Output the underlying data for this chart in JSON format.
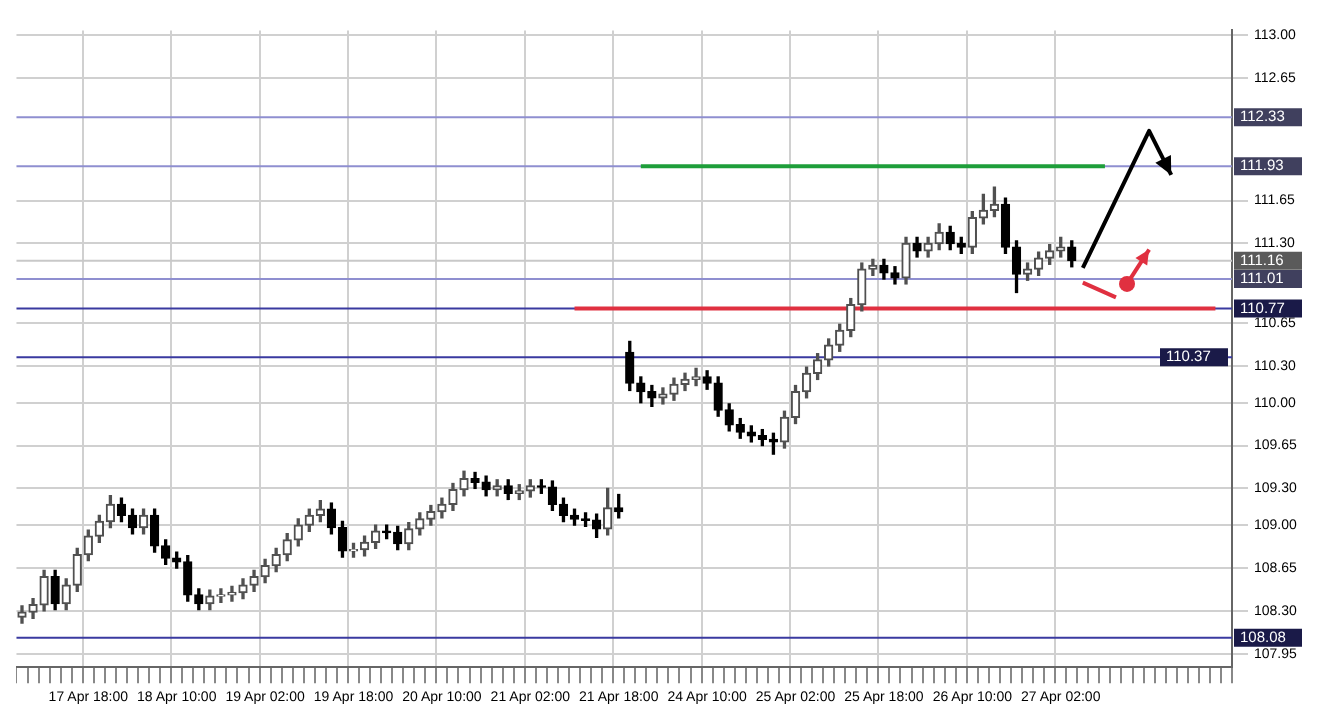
{
  "chart_data": {
    "type": "candlestick",
    "categories": [
      null,
      null,
      null,
      null,
      null,
      null,
      "17 Apr 18:00",
      null,
      null,
      null,
      null,
      null,
      null,
      null,
      "18 Apr 10:00",
      null,
      null,
      null,
      null,
      null,
      null,
      null,
      "19 Apr 02:00",
      null,
      null,
      null,
      null,
      null,
      null,
      null,
      "19 Apr 18:00",
      null,
      null,
      null,
      null,
      null,
      null,
      null,
      "20 Apr 10:00",
      null,
      null,
      null,
      null,
      null,
      null,
      null,
      "21 Apr 02:00",
      null,
      null,
      null,
      null,
      null,
      null,
      null,
      "21 Apr 18:00",
      null,
      null,
      null,
      null,
      null,
      null,
      null,
      "24 Apr 10:00",
      null,
      null,
      null,
      null,
      null,
      null,
      null,
      "25 Apr 02:00",
      null,
      null,
      null,
      null,
      null,
      null,
      null,
      "25 Apr 18:00",
      null,
      null,
      null,
      null,
      null,
      null,
      null,
      "26 Apr 10:00",
      null,
      null,
      null,
      null,
      null,
      null,
      null,
      "27 Apr 02:00",
      null,
      null,
      null,
      null,
      null,
      null,
      null,
      null,
      null,
      null,
      null,
      null,
      null,
      null,
      null
    ],
    "ohlc": [
      [
        108.25,
        108.34,
        108.2,
        108.29
      ],
      [
        108.29,
        108.4,
        108.24,
        108.35
      ],
      [
        108.35,
        108.63,
        108.3,
        108.58
      ],
      [
        108.58,
        108.63,
        108.31,
        108.36
      ],
      [
        108.36,
        108.56,
        108.31,
        108.51
      ],
      [
        108.51,
        108.81,
        108.46,
        108.76
      ],
      [
        108.76,
        108.96,
        108.71,
        108.91
      ],
      [
        108.91,
        109.08,
        108.86,
        109.03
      ],
      [
        109.03,
        109.24,
        108.98,
        109.17
      ],
      [
        109.17,
        109.22,
        109.03,
        109.08
      ],
      [
        109.08,
        109.13,
        108.93,
        108.98
      ],
      [
        108.98,
        109.13,
        108.93,
        109.08
      ],
      [
        109.08,
        109.13,
        108.78,
        108.83
      ],
      [
        108.83,
        108.88,
        108.68,
        108.73
      ],
      [
        108.73,
        108.78,
        108.65,
        108.7
      ],
      [
        108.7,
        108.75,
        108.38,
        108.43
      ],
      [
        108.43,
        108.48,
        108.31,
        108.36
      ],
      [
        108.36,
        108.47,
        108.31,
        108.42
      ],
      [
        108.42,
        108.48,
        108.37,
        108.43
      ],
      [
        108.43,
        108.5,
        108.38,
        108.45
      ],
      [
        108.45,
        108.56,
        108.4,
        108.51
      ],
      [
        108.51,
        108.63,
        108.46,
        108.58
      ],
      [
        108.58,
        108.72,
        108.53,
        108.67
      ],
      [
        108.67,
        108.81,
        108.62,
        108.76
      ],
      [
        108.76,
        108.93,
        108.71,
        108.88
      ],
      [
        108.88,
        109.05,
        108.83,
        109.0
      ],
      [
        109.0,
        109.13,
        108.95,
        109.08
      ],
      [
        109.08,
        109.2,
        109.03,
        109.13
      ],
      [
        109.13,
        109.18,
        108.93,
        108.98
      ],
      [
        108.98,
        109.03,
        108.74,
        108.79
      ],
      [
        108.79,
        108.85,
        108.74,
        108.8
      ],
      [
        108.8,
        108.91,
        108.75,
        108.86
      ],
      [
        108.86,
        109.0,
        108.81,
        108.95
      ],
      [
        108.95,
        109.0,
        108.89,
        108.94
      ],
      [
        108.94,
        108.99,
        108.8,
        108.85
      ],
      [
        108.85,
        109.02,
        108.8,
        108.97
      ],
      [
        108.97,
        109.1,
        108.92,
        109.05
      ],
      [
        109.05,
        109.16,
        109.0,
        109.11
      ],
      [
        109.11,
        109.22,
        109.06,
        109.17
      ],
      [
        109.17,
        109.34,
        109.12,
        109.29
      ],
      [
        109.29,
        109.44,
        109.24,
        109.38
      ],
      [
        109.38,
        109.43,
        109.3,
        109.35
      ],
      [
        109.35,
        109.4,
        109.24,
        109.29
      ],
      [
        109.29,
        109.37,
        109.24,
        109.32
      ],
      [
        109.32,
        109.37,
        109.21,
        109.26
      ],
      [
        109.26,
        109.33,
        109.21,
        109.28
      ],
      [
        109.28,
        109.37,
        109.23,
        109.32
      ],
      [
        109.32,
        109.37,
        109.26,
        109.31
      ],
      [
        109.31,
        109.36,
        109.12,
        109.17
      ],
      [
        109.17,
        109.22,
        109.03,
        109.08
      ],
      [
        109.08,
        109.13,
        109.0,
        109.05
      ],
      [
        109.05,
        109.1,
        108.99,
        109.04
      ],
      [
        109.04,
        109.09,
        108.9,
        108.97
      ],
      [
        108.97,
        109.3,
        108.92,
        109.14
      ],
      [
        109.14,
        109.25,
        109.06,
        109.11
      ],
      [
        110.41,
        110.5,
        110.1,
        110.16
      ],
      [
        110.16,
        110.21,
        110.0,
        110.09
      ],
      [
        110.09,
        110.14,
        109.97,
        110.04
      ],
      [
        110.04,
        110.12,
        109.99,
        110.07
      ],
      [
        110.07,
        110.2,
        110.02,
        110.15
      ],
      [
        110.15,
        110.24,
        110.1,
        110.19
      ],
      [
        110.19,
        110.28,
        110.14,
        110.21
      ],
      [
        110.21,
        110.26,
        110.11,
        110.16
      ],
      [
        110.16,
        110.21,
        109.89,
        109.94
      ],
      [
        109.94,
        109.99,
        109.77,
        109.82
      ],
      [
        109.82,
        109.87,
        109.71,
        109.76
      ],
      [
        109.76,
        109.81,
        109.68,
        109.73
      ],
      [
        109.73,
        109.78,
        109.65,
        109.7
      ],
      [
        109.7,
        109.75,
        109.58,
        109.68
      ],
      [
        109.68,
        109.93,
        109.63,
        109.88
      ],
      [
        109.88,
        110.14,
        109.83,
        110.09
      ],
      [
        110.09,
        110.29,
        110.04,
        110.24
      ],
      [
        110.24,
        110.4,
        110.19,
        110.35
      ],
      [
        110.35,
        110.52,
        110.3,
        110.47
      ],
      [
        110.47,
        110.64,
        110.42,
        110.59
      ],
      [
        110.59,
        110.85,
        110.54,
        110.8
      ],
      [
        110.8,
        111.14,
        110.75,
        111.09
      ],
      [
        111.09,
        111.17,
        111.04,
        111.12
      ],
      [
        111.12,
        111.17,
        111.01,
        111.06
      ],
      [
        111.06,
        111.11,
        110.97,
        111.02
      ],
      [
        111.02,
        111.35,
        110.97,
        111.3
      ],
      [
        111.3,
        111.35,
        111.19,
        111.24
      ],
      [
        111.24,
        111.35,
        111.19,
        111.3
      ],
      [
        111.3,
        111.46,
        111.25,
        111.39
      ],
      [
        111.39,
        111.44,
        111.25,
        111.3
      ],
      [
        111.3,
        111.35,
        111.22,
        111.27
      ],
      [
        111.27,
        111.56,
        111.22,
        111.51
      ],
      [
        111.51,
        111.7,
        111.46,
        111.57
      ],
      [
        111.57,
        111.76,
        111.52,
        111.62
      ],
      [
        111.62,
        111.67,
        111.22,
        111.27
      ],
      [
        111.27,
        111.32,
        110.9,
        111.05
      ],
      [
        111.05,
        111.14,
        111.0,
        111.09
      ],
      [
        111.09,
        111.23,
        111.04,
        111.18
      ],
      [
        111.18,
        111.29,
        111.13,
        111.24
      ],
      [
        111.24,
        111.35,
        111.19,
        111.27
      ],
      [
        111.27,
        111.32,
        111.11,
        111.16
      ],
      null,
      null,
      null,
      null,
      null,
      null,
      null,
      null,
      null,
      null,
      null,
      null,
      null,
      null
    ],
    "series": [
      {
        "type": "line",
        "color": "#1e9e3a",
        "values": [
          null,
          null,
          null,
          null,
          null,
          null,
          null,
          null,
          null,
          null,
          null,
          null,
          null,
          null,
          null,
          null,
          null,
          null,
          null,
          null,
          null,
          null,
          null,
          null,
          null,
          null,
          null,
          null,
          null,
          null,
          null,
          null,
          null,
          null,
          null,
          null,
          null,
          null,
          null,
          null,
          null,
          null,
          null,
          null,
          null,
          null,
          null,
          null,
          null,
          null,
          null,
          null,
          null,
          null,
          null,
          null,
          111.93,
          111.93,
          111.93,
          111.93,
          111.93,
          111.93,
          111.93,
          111.93,
          111.93,
          111.93,
          111.93,
          111.93,
          111.93,
          111.93,
          111.93,
          111.93,
          111.93,
          111.93,
          111.93,
          111.93,
          111.93,
          111.93,
          111.93,
          111.93,
          111.93,
          111.93,
          111.93,
          111.93,
          111.93,
          111.93,
          111.93,
          111.93,
          111.93,
          111.93,
          111.93,
          111.93,
          111.93,
          111.93,
          111.93,
          111.93,
          111.93,
          111.93,
          111.93,
          null,
          null,
          null,
          null,
          null,
          null,
          null,
          null,
          null,
          null,
          null
        ]
      },
      {
        "type": "line",
        "color": "#e03040",
        "values": [
          null,
          null,
          null,
          null,
          null,
          null,
          null,
          null,
          null,
          null,
          null,
          null,
          null,
          null,
          null,
          null,
          null,
          null,
          null,
          null,
          null,
          null,
          null,
          null,
          null,
          null,
          null,
          null,
          null,
          null,
          null,
          null,
          null,
          null,
          null,
          null,
          null,
          null,
          null,
          null,
          null,
          null,
          null,
          null,
          null,
          null,
          null,
          null,
          null,
          null,
          110.77,
          110.77,
          110.77,
          110.77,
          110.77,
          110.77,
          110.77,
          110.77,
          110.77,
          110.77,
          110.77,
          110.77,
          110.77,
          110.77,
          110.77,
          110.77,
          110.77,
          110.77,
          110.77,
          110.77,
          110.77,
          110.77,
          110.77,
          110.77,
          110.77,
          110.77,
          110.77,
          110.77,
          110.77,
          110.77,
          110.77,
          110.77,
          110.77,
          110.77,
          110.77,
          110.77,
          110.77,
          110.77,
          110.77,
          110.77,
          110.77,
          110.77,
          110.77,
          110.77,
          110.77,
          110.77,
          110.77,
          110.77,
          110.77,
          110.77,
          110.77,
          110.77,
          110.77,
          110.77,
          110.77,
          110.77,
          110.77,
          110.77,
          110.77,
          null
        ]
      }
    ],
    "ylim": [
      107.84,
      113.04
    ],
    "yticks": [
      {
        "value": 113,
        "label": "113.00"
      },
      {
        "value": 112.65,
        "label": "112.65"
      },
      {
        "value": 111.65,
        "label": "111.65"
      },
      {
        "value": 111.3,
        "label": "111.30"
      },
      {
        "value": 110.65,
        "label": "110.65"
      },
      {
        "value": 110.3,
        "label": "110.30"
      },
      {
        "value": 110,
        "label": "110.00"
      },
      {
        "value": 109.65,
        "label": "109.65"
      },
      {
        "value": 109.3,
        "label": "109.30"
      },
      {
        "value": 109,
        "label": "109.00"
      },
      {
        "value": 108.65,
        "label": "108.65"
      },
      {
        "value": 108.3,
        "label": "108.30"
      },
      {
        "value": 107.95,
        "label": "107.95"
      }
    ],
    "ref_lines": [
      {
        "axis": "y",
        "value": 112.33,
        "label": "112.33",
        "color": "#8f8fd0"
      },
      {
        "axis": "y",
        "value": 111.93,
        "label": "111.93",
        "color": "#8f8fd0"
      },
      {
        "axis": "y",
        "value": 111.16,
        "label": "111.16",
        "color": "#c8c8c8"
      },
      {
        "axis": "y",
        "value": 111.01,
        "label": "111.01",
        "color": "#8f8fd0"
      },
      {
        "axis": "y",
        "value": 110.77,
        "label": "110.77",
        "color": "#3a3aa0"
      },
      {
        "axis": "y",
        "value": 110.37,
        "label": "110.37",
        "color": "#3a3aa0"
      },
      {
        "axis": "y",
        "value": 108.08,
        "label": "108.08",
        "color": "#3a3aa0"
      }
    ],
    "grid": true
  }
}
